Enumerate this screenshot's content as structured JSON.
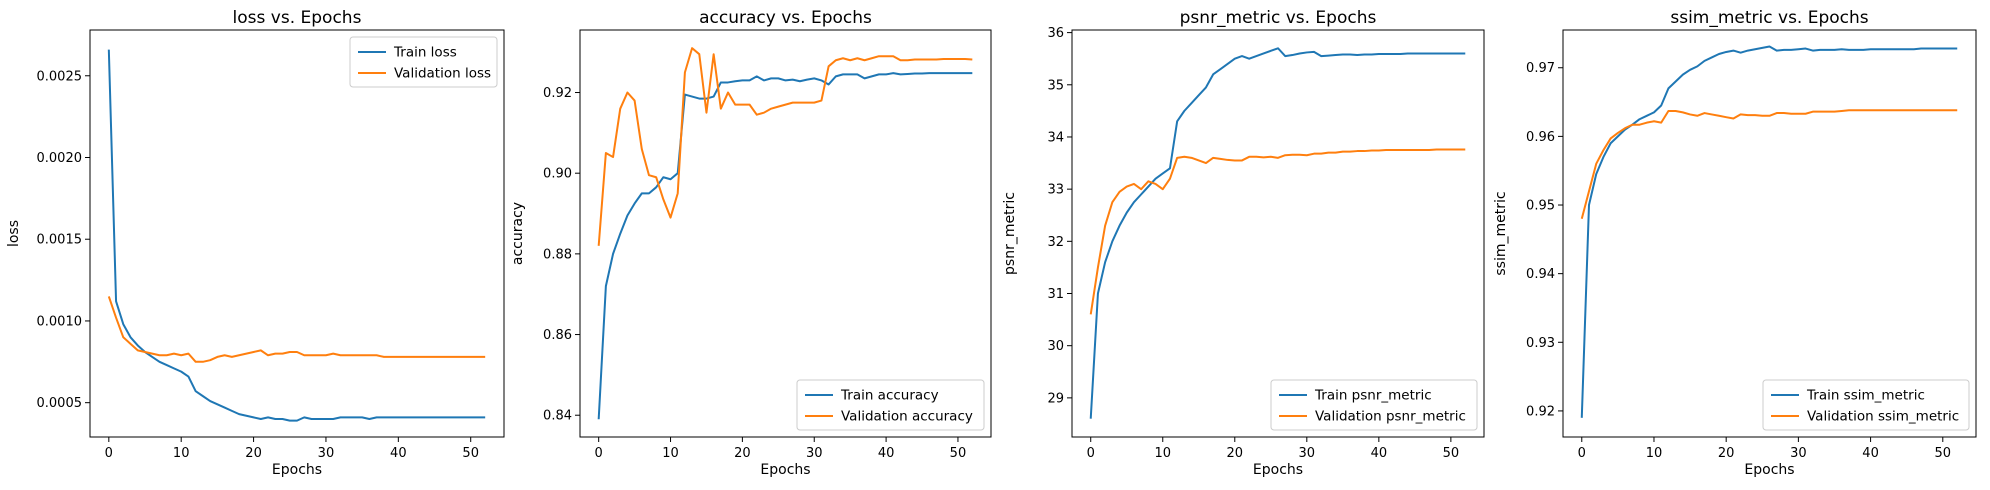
{
  "chart_data": [
    {
      "type": "line",
      "title": "loss vs. Epochs",
      "xlabel": "Epochs",
      "ylabel": "loss",
      "xlim": [
        -2.6,
        54.6
      ],
      "ylim": [
        0.00029,
        0.00278
      ],
      "xticks": [
        0,
        10,
        20,
        30,
        40,
        50
      ],
      "yticks": [
        0.0005,
        0.001,
        0.0015,
        0.002,
        0.0025
      ],
      "ytick_labels": [
        "0.0005",
        "0.0010",
        "0.0015",
        "0.0020",
        "0.0025"
      ],
      "legend_loc": "top-right",
      "x": [
        0,
        1,
        2,
        3,
        4,
        5,
        6,
        7,
        8,
        9,
        10,
        11,
        12,
        13,
        14,
        15,
        16,
        17,
        18,
        19,
        20,
        21,
        22,
        23,
        24,
        25,
        26,
        27,
        28,
        29,
        30,
        31,
        32,
        33,
        34,
        35,
        36,
        37,
        38,
        39,
        40,
        41,
        42,
        43,
        44,
        45,
        46,
        47,
        48,
        49,
        50,
        51,
        52
      ],
      "series": [
        {
          "name": "Train loss",
          "color": "#1f77b4",
          "values": [
            0.00266,
            0.00112,
            0.00098,
            0.0009,
            0.00085,
            0.00081,
            0.00078,
            0.00075,
            0.00073,
            0.00071,
            0.00069,
            0.00066,
            0.00057,
            0.00054,
            0.00051,
            0.00049,
            0.00047,
            0.00045,
            0.00043,
            0.00042,
            0.00041,
            0.0004,
            0.00041,
            0.0004,
            0.0004,
            0.00039,
            0.00039,
            0.00041,
            0.0004,
            0.0004,
            0.0004,
            0.0004,
            0.00041,
            0.00041,
            0.00041,
            0.00041,
            0.0004,
            0.00041,
            0.00041,
            0.00041,
            0.00041,
            0.00041,
            0.00041,
            0.00041,
            0.00041,
            0.00041,
            0.00041,
            0.00041,
            0.00041,
            0.00041,
            0.00041,
            0.00041,
            0.00041
          ]
        },
        {
          "name": "Validation loss",
          "color": "#ff7f0e",
          "values": [
            0.00115,
            0.00102,
            0.0009,
            0.00086,
            0.00082,
            0.00081,
            0.0008,
            0.00079,
            0.00079,
            0.0008,
            0.00079,
            0.0008,
            0.00075,
            0.00075,
            0.00076,
            0.00078,
            0.00079,
            0.00078,
            0.00079,
            0.0008,
            0.00081,
            0.00082,
            0.00079,
            0.0008,
            0.0008,
            0.00081,
            0.00081,
            0.00079,
            0.00079,
            0.00079,
            0.00079,
            0.0008,
            0.00079,
            0.00079,
            0.00079,
            0.00079,
            0.00079,
            0.00079,
            0.00078,
            0.00078,
            0.00078,
            0.00078,
            0.00078,
            0.00078,
            0.00078,
            0.00078,
            0.00078,
            0.00078,
            0.00078,
            0.00078,
            0.00078,
            0.00078,
            0.00078
          ]
        }
      ]
    },
    {
      "type": "line",
      "title": "accuracy vs. Epochs",
      "xlabel": "Epochs",
      "ylabel": "accuracy",
      "xlim": [
        -2.6,
        54.6
      ],
      "ylim": [
        0.8346,
        0.9355
      ],
      "xticks": [
        0,
        10,
        20,
        30,
        40,
        50
      ],
      "yticks": [
        0.84,
        0.86,
        0.88,
        0.9,
        0.92
      ],
      "ytick_labels": [
        "0.84",
        "0.86",
        "0.88",
        "0.90",
        "0.92"
      ],
      "legend_loc": "bottom-right",
      "x": [
        0,
        1,
        2,
        3,
        4,
        5,
        6,
        7,
        8,
        9,
        10,
        11,
        12,
        13,
        14,
        15,
        16,
        17,
        18,
        19,
        20,
        21,
        22,
        23,
        24,
        25,
        26,
        27,
        28,
        29,
        30,
        31,
        32,
        33,
        34,
        35,
        36,
        37,
        38,
        39,
        40,
        41,
        42,
        43,
        44,
        45,
        46,
        47,
        48,
        49,
        50,
        51,
        52
      ],
      "series": [
        {
          "name": "Train accuracy",
          "color": "#1f77b4",
          "values": [
            0.839,
            0.872,
            0.88,
            0.885,
            0.8895,
            0.8925,
            0.895,
            0.895,
            0.8965,
            0.899,
            0.8985,
            0.9,
            0.9195,
            0.919,
            0.9185,
            0.9185,
            0.919,
            0.9225,
            0.9225,
            0.9228,
            0.923,
            0.923,
            0.924,
            0.923,
            0.9235,
            0.9235,
            0.923,
            0.9232,
            0.9228,
            0.9232,
            0.9235,
            0.923,
            0.922,
            0.924,
            0.9245,
            0.9245,
            0.9245,
            0.9235,
            0.924,
            0.9245,
            0.9245,
            0.9248,
            0.9245,
            0.9246,
            0.9247,
            0.9247,
            0.9248,
            0.9248,
            0.9248,
            0.9248,
            0.9248,
            0.9248,
            0.9248
          ]
        },
        {
          "name": "Validation accuracy",
          "color": "#ff7f0e",
          "values": [
            0.882,
            0.905,
            0.904,
            0.916,
            0.92,
            0.918,
            0.906,
            0.8995,
            0.899,
            0.8935,
            0.889,
            0.895,
            0.925,
            0.931,
            0.9295,
            0.915,
            0.9295,
            0.916,
            0.92,
            0.917,
            0.917,
            0.917,
            0.9145,
            0.915,
            0.916,
            0.9165,
            0.917,
            0.9175,
            0.9175,
            0.9175,
            0.9175,
            0.918,
            0.9265,
            0.928,
            0.9285,
            0.928,
            0.9285,
            0.928,
            0.9285,
            0.929,
            0.929,
            0.929,
            0.928,
            0.928,
            0.9282,
            0.9282,
            0.9282,
            0.9282,
            0.9283,
            0.9283,
            0.9283,
            0.9283,
            0.9282
          ]
        }
      ]
    },
    {
      "type": "line",
      "title": "psnr_metric vs. Epochs",
      "xlabel": "Epochs",
      "ylabel": "psnr_metric",
      "xlim": [
        -2.6,
        54.6
      ],
      "ylim": [
        28.25,
        36.05
      ],
      "xticks": [
        0,
        10,
        20,
        30,
        40,
        50
      ],
      "yticks": [
        29,
        30,
        31,
        32,
        33,
        34,
        35,
        36
      ],
      "ytick_labels": [
        "29",
        "30",
        "31",
        "32",
        "33",
        "34",
        "35",
        "36"
      ],
      "legend_loc": "bottom-right",
      "x": [
        0,
        1,
        2,
        3,
        4,
        5,
        6,
        7,
        8,
        9,
        10,
        11,
        12,
        13,
        14,
        15,
        16,
        17,
        18,
        19,
        20,
        21,
        22,
        23,
        24,
        25,
        26,
        27,
        28,
        29,
        30,
        31,
        32,
        33,
        34,
        35,
        36,
        37,
        38,
        39,
        40,
        41,
        42,
        43,
        44,
        45,
        46,
        47,
        48,
        49,
        50,
        51,
        52
      ],
      "series": [
        {
          "name": "Train psnr_metric",
          "color": "#1f77b4",
          "values": [
            28.6,
            31.0,
            31.6,
            32.0,
            32.3,
            32.55,
            32.75,
            32.9,
            33.05,
            33.2,
            33.3,
            33.4,
            34.3,
            34.5,
            34.65,
            34.8,
            34.95,
            35.2,
            35.3,
            35.4,
            35.5,
            35.55,
            35.5,
            35.55,
            35.6,
            35.65,
            35.7,
            35.55,
            35.57,
            35.6,
            35.62,
            35.63,
            35.55,
            35.56,
            35.57,
            35.58,
            35.58,
            35.57,
            35.58,
            35.58,
            35.59,
            35.59,
            35.59,
            35.59,
            35.6,
            35.6,
            35.6,
            35.6,
            35.6,
            35.6,
            35.6,
            35.6,
            35.6
          ]
        },
        {
          "name": "Validation psnr_metric",
          "color": "#ff7f0e",
          "values": [
            30.6,
            31.5,
            32.3,
            32.75,
            32.95,
            33.05,
            33.1,
            33.0,
            33.15,
            33.1,
            33.0,
            33.2,
            33.6,
            33.62,
            33.6,
            33.55,
            33.5,
            33.6,
            33.58,
            33.56,
            33.55,
            33.55,
            33.62,
            33.62,
            33.61,
            33.62,
            33.6,
            33.65,
            33.66,
            33.66,
            33.65,
            33.68,
            33.68,
            33.7,
            33.7,
            33.72,
            33.72,
            33.73,
            33.73,
            33.74,
            33.74,
            33.75,
            33.75,
            33.75,
            33.75,
            33.75,
            33.75,
            33.75,
            33.76,
            33.76,
            33.76,
            33.76,
            33.76
          ]
        }
      ]
    },
    {
      "type": "line",
      "title": "ssim_metric vs. Epochs",
      "xlabel": "Epochs",
      "ylabel": "ssim_metric",
      "xlim": [
        -2.6,
        54.6
      ],
      "ylim": [
        0.9162,
        0.9755
      ],
      "xticks": [
        0,
        10,
        20,
        30,
        40,
        50
      ],
      "yticks": [
        0.92,
        0.93,
        0.94,
        0.95,
        0.96,
        0.97
      ],
      "ytick_labels": [
        "0.92",
        "0.93",
        "0.94",
        "0.95",
        "0.96",
        "0.97"
      ],
      "legend_loc": "bottom-right",
      "x": [
        0,
        1,
        2,
        3,
        4,
        5,
        6,
        7,
        8,
        9,
        10,
        11,
        12,
        13,
        14,
        15,
        16,
        17,
        18,
        19,
        20,
        21,
        22,
        23,
        24,
        25,
        26,
        27,
        28,
        29,
        30,
        31,
        32,
        33,
        34,
        35,
        36,
        37,
        38,
        39,
        40,
        41,
        42,
        43,
        44,
        45,
        46,
        47,
        48,
        49,
        50,
        51,
        52
      ],
      "series": [
        {
          "name": "Train ssim_metric",
          "color": "#1f77b4",
          "values": [
            0.919,
            0.95,
            0.9545,
            0.957,
            0.959,
            0.96,
            0.961,
            0.9617,
            0.9625,
            0.963,
            0.9635,
            0.9645,
            0.967,
            0.968,
            0.969,
            0.9697,
            0.9702,
            0.971,
            0.9715,
            0.972,
            0.9723,
            0.9725,
            0.9722,
            0.9725,
            0.9727,
            0.9729,
            0.9731,
            0.9725,
            0.9726,
            0.9726,
            0.9727,
            0.9728,
            0.9725,
            0.9726,
            0.9726,
            0.9726,
            0.9727,
            0.9726,
            0.9726,
            0.9726,
            0.9727,
            0.9727,
            0.9727,
            0.9727,
            0.9727,
            0.9727,
            0.9727,
            0.9728,
            0.9728,
            0.9728,
            0.9728,
            0.9728,
            0.9728
          ]
        },
        {
          "name": "Validation ssim_metric",
          "color": "#ff7f0e",
          "values": [
            0.948,
            0.952,
            0.956,
            0.958,
            0.9597,
            0.9605,
            0.9612,
            0.9617,
            0.9617,
            0.962,
            0.9622,
            0.962,
            0.9637,
            0.9637,
            0.9635,
            0.9632,
            0.963,
            0.9634,
            0.9632,
            0.963,
            0.9628,
            0.9626,
            0.9632,
            0.9631,
            0.9631,
            0.963,
            0.963,
            0.9634,
            0.9634,
            0.9633,
            0.9633,
            0.9633,
            0.9636,
            0.9636,
            0.9636,
            0.9636,
            0.9637,
            0.9638,
            0.9638,
            0.9638,
            0.9638,
            0.9638,
            0.9638,
            0.9638,
            0.9638,
            0.9638,
            0.9638,
            0.9638,
            0.9638,
            0.9638,
            0.9638,
            0.9638,
            0.9638
          ]
        }
      ]
    }
  ]
}
